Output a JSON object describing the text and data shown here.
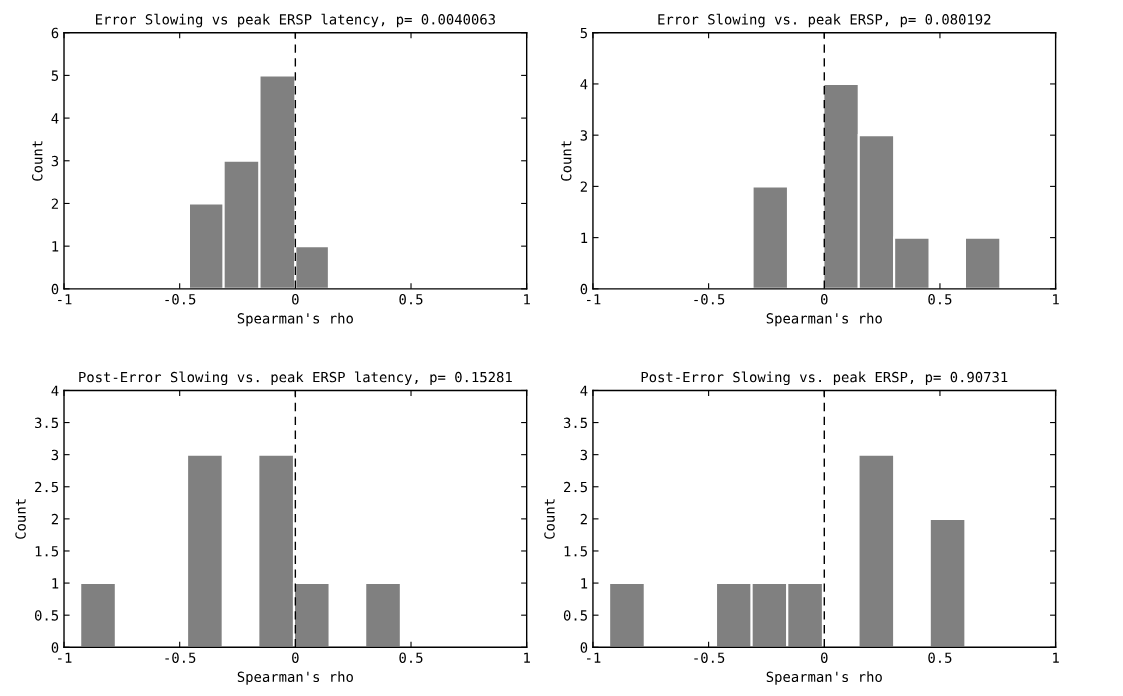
{
  "chart_data": [
    {
      "type": "histogram",
      "title": "Error Slowing vs peak ERSP latency, p= 0.0040063",
      "xlabel": "Spearman's rho",
      "ylabel": "Count",
      "bins": [
        -0.46,
        -0.31,
        -0.155,
        0.0,
        0.145
      ],
      "values": [
        2,
        3,
        5,
        1
      ],
      "color": "#808080",
      "xlim": [
        -1,
        1
      ],
      "xticks": [
        -1,
        -0.5,
        0,
        0.5,
        1
      ],
      "ylim": [
        0,
        6
      ],
      "yticks": [
        0,
        1,
        2,
        3,
        4,
        5,
        6
      ],
      "ref_lines": [
        {
          "axis": "x",
          "value": 0,
          "color": "#000000",
          "line_style": "dashed"
        }
      ],
      "grid": false
    },
    {
      "type": "histogram",
      "title": "Error Slowing vs. peak ERSP, p= 0.080192",
      "xlabel": "Spearman's rho",
      "ylabel": "Count",
      "bins": [
        -0.31,
        -0.157,
        -0.004,
        0.149,
        0.302,
        0.455,
        0.608,
        0.761
      ],
      "values": [
        2,
        0,
        4,
        3,
        1,
        0,
        1
      ],
      "color": "#808080",
      "xlim": [
        -1,
        1
      ],
      "xticks": [
        -1,
        -0.5,
        0,
        0.5,
        1
      ],
      "ylim": [
        0,
        5
      ],
      "yticks": [
        0,
        1,
        2,
        3,
        4,
        5
      ],
      "ref_lines": [
        {
          "axis": "x",
          "value": 0,
          "color": "#000000",
          "line_style": "dashed"
        }
      ],
      "grid": false
    },
    {
      "type": "histogram",
      "title": "Post-Error Slowing vs. peak ERSP latency, p= 0.15281",
      "xlabel": "Spearman's rho",
      "ylabel": "Count",
      "bins": [
        -0.93,
        -0.776,
        -0.622,
        -0.468,
        -0.314,
        -0.16,
        -0.006,
        0.148,
        0.302,
        0.456
      ],
      "values": [
        1,
        0,
        0,
        3,
        0,
        3,
        1,
        0,
        1
      ],
      "color": "#808080",
      "xlim": [
        -1,
        1
      ],
      "xticks": [
        -1,
        -0.5,
        0,
        0.5,
        1
      ],
      "ylim": [
        0,
        4
      ],
      "yticks": [
        0,
        0.5,
        1,
        1.5,
        2,
        2.5,
        3,
        3.5,
        4
      ],
      "ref_lines": [
        {
          "axis": "x",
          "value": 0,
          "color": "#000000",
          "line_style": "dashed"
        }
      ],
      "grid": false
    },
    {
      "type": "histogram",
      "title": "Post-Error Slowing vs. peak ERSP, p= 0.90731",
      "xlabel": "Spearman's rho",
      "ylabel": "Count",
      "bins": [
        -0.93,
        -0.776,
        -0.622,
        -0.468,
        -0.314,
        -0.16,
        -0.006,
        0.148,
        0.302,
        0.456,
        0.61
      ],
      "values": [
        1,
        0,
        0,
        1,
        1,
        1,
        0,
        3,
        0,
        2
      ],
      "color": "#808080",
      "xlim": [
        -1,
        1
      ],
      "xticks": [
        -1,
        -0.5,
        0,
        0.5,
        1
      ],
      "ylim": [
        0,
        4
      ],
      "yticks": [
        0,
        0.5,
        1,
        1.5,
        2,
        2.5,
        3,
        3.5,
        4
      ],
      "ref_lines": [
        {
          "axis": "x",
          "value": 0,
          "color": "#000000",
          "line_style": "dashed"
        }
      ],
      "grid": false
    }
  ]
}
